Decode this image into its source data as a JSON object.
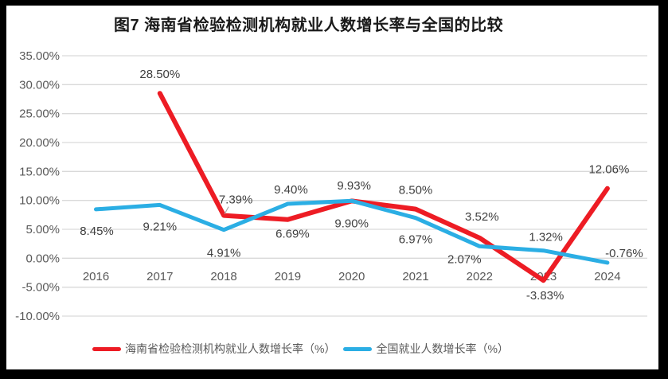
{
  "title": "图7 海南省检验检测机构就业人数增长率与全国的比较",
  "colors": {
    "hainan_red": "#ED1C24",
    "national_blue": "#2BAEE4",
    "gridline": "#D9D9D9",
    "axis_text": "#595959",
    "data_label_text": "#3F3F3F",
    "callout_gray": "#A6A6A6",
    "border_black": "#000000",
    "background": "#FFFFFF"
  },
  "chart_data": {
    "type": "line",
    "title": "图7 海南省检验检测机构就业人数增长率与全国的比较",
    "xlabel": "",
    "ylabel": "",
    "categories": [
      "2016",
      "2017",
      "2018",
      "2019",
      "2020",
      "2021",
      "2022",
      "2023",
      "2024"
    ],
    "ylim": [
      -10,
      35
    ],
    "grid": true,
    "legend_position": "bottom",
    "y_axis": {
      "tick_labels": [
        "35.00%",
        "30.00%",
        "25.00%",
        "20.00%",
        "15.00%",
        "10.00%",
        "5.00%",
        "0.00%",
        "-5.00%",
        "-10.00%"
      ],
      "tick_values": [
        35,
        30,
        25,
        20,
        15,
        10,
        5,
        0,
        -5,
        -10
      ]
    },
    "series": [
      {
        "name": "海南省检验检测机构就业人数增长率（%）",
        "color": "#ED1C24",
        "stroke_width": 6,
        "points": [
          {
            "category": "2017",
            "value": 28.5,
            "label": "28.50%",
            "dx": 0,
            "dy": -24
          },
          {
            "category": "2018",
            "value": 7.39,
            "label": "7.39%",
            "dx": 15,
            "dy": -20,
            "callout": true
          },
          {
            "category": "2019",
            "value": 6.69,
            "label": "6.69%",
            "dx": 6,
            "dy": 18
          },
          {
            "category": "2020",
            "value": 9.9,
            "label": "9.90%",
            "dx": 0,
            "dy": 28
          },
          {
            "category": "2021",
            "value": 8.5,
            "label": "8.50%",
            "dx": 0,
            "dy": -24
          },
          {
            "category": "2022",
            "value": 3.52,
            "label": "3.52%",
            "dx": 3,
            "dy": -27
          },
          {
            "category": "2023",
            "value": -3.83,
            "label": "-3.83%",
            "dx": 2,
            "dy": 19
          },
          {
            "category": "2024",
            "value": 12.06,
            "label": "12.06%",
            "dx": 2,
            "dy": -24
          }
        ]
      },
      {
        "name": "全国就业人数增长率（%）",
        "color": "#2BAEE4",
        "stroke_width": 5,
        "points": [
          {
            "category": "2016",
            "value": 8.45,
            "label": "8.45%",
            "dx": 1,
            "dy": 27
          },
          {
            "category": "2017",
            "value": 9.21,
            "label": "9.21%",
            "dx": 0,
            "dy": 27
          },
          {
            "category": "2018",
            "value": 4.91,
            "label": "4.91%",
            "dx": 0,
            "dy": 29
          },
          {
            "category": "2019",
            "value": 9.4,
            "label": "9.40%",
            "dx": 4,
            "dy": -18
          },
          {
            "category": "2020",
            "value": 9.93,
            "label": "9.93%",
            "dx": 3,
            "dy": -19
          },
          {
            "category": "2021",
            "value": 6.97,
            "label": "6.97%",
            "dx": 0,
            "dy": 27
          },
          {
            "category": "2022",
            "value": 2.07,
            "label": "2.07%",
            "dx": -19,
            "dy": 16
          },
          {
            "category": "2023",
            "value": 1.32,
            "label": "1.32%",
            "dx": 3,
            "dy": -17
          },
          {
            "category": "2024",
            "value": -0.76,
            "label": "-0.76%",
            "dx": 21,
            "dy": -12
          }
        ]
      }
    ]
  }
}
